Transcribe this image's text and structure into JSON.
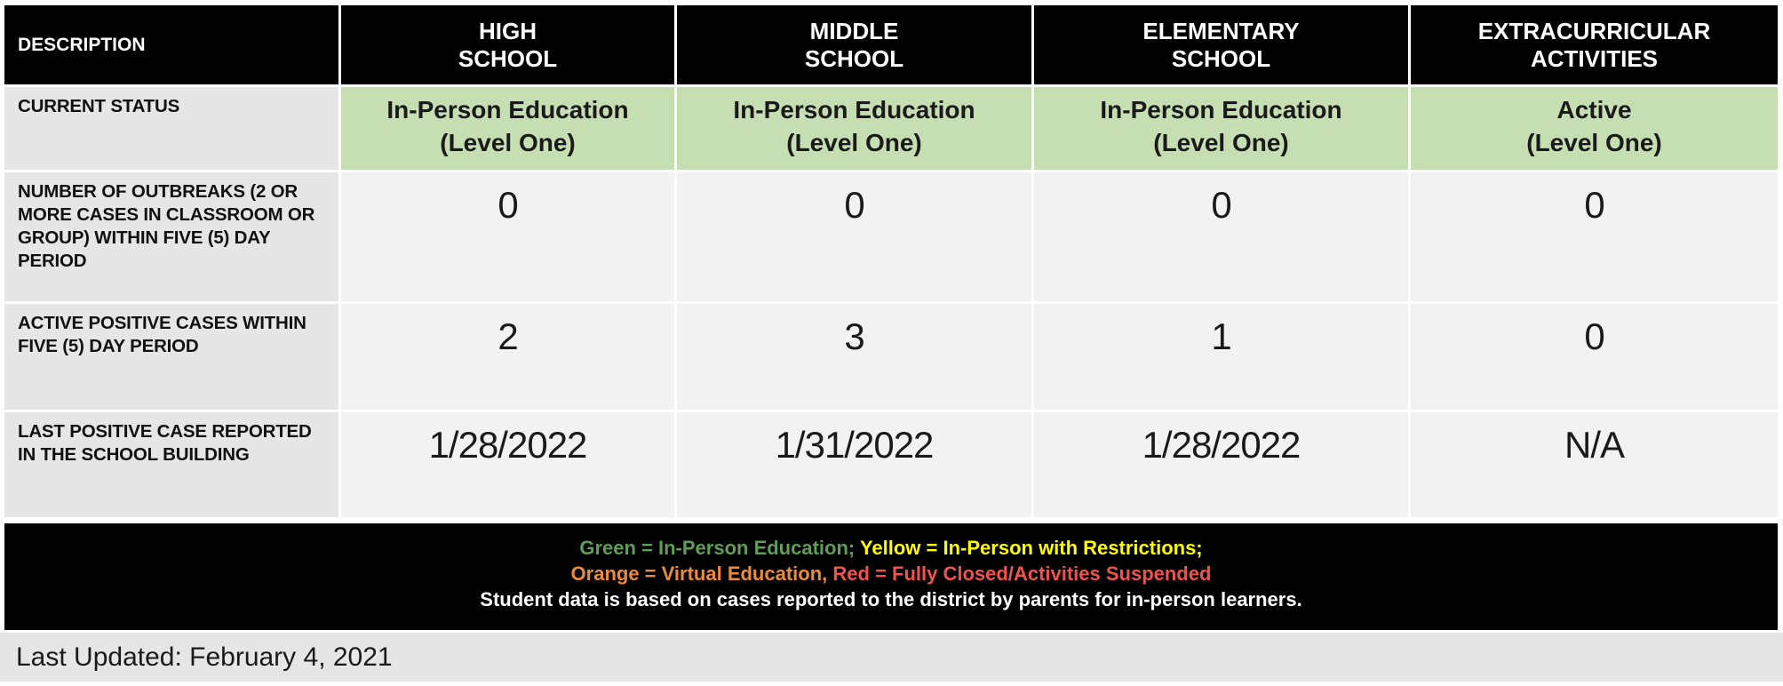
{
  "table": {
    "columns": [
      "DESCRIPTION",
      "HIGH\nSCHOOL",
      "MIDDLE\nSCHOOL",
      "ELEMENTARY\nSCHOOL",
      "EXTRACURRICULAR\nACTIVITIES"
    ],
    "rows": [
      {
        "label": "CURRENT STATUS",
        "values": [
          "In-Person Education\n(Level One)",
          "In-Person Education\n(Level One)",
          "In-Person Education\n(Level One)",
          "Active\n(Level One)"
        ]
      },
      {
        "label": "NUMBER OF OUTBREAKS (2 OR\nMORE CASES IN CLASSROOM OR\nGROUP) WITHIN FIVE (5) DAY\nPERIOD",
        "values": [
          "0",
          "0",
          "0",
          "0"
        ]
      },
      {
        "label": "ACTIVE POSITIVE CASES WITHIN\nFIVE (5) DAY PERIOD",
        "values": [
          "2",
          "3",
          "1",
          "0"
        ]
      },
      {
        "label": "LAST POSITIVE CASE REPORTED\nIN THE SCHOOL BUILDING",
        "values": [
          "1/28/2022",
          "1/31/2022",
          "1/28/2022",
          "N/A"
        ]
      }
    ]
  },
  "legend": {
    "line1": [
      {
        "text": "Green = In-Person Education;",
        "color": "#5e9e56"
      },
      {
        "text": " Yellow = In-Person with Restrictions;",
        "color": "#ffff00"
      }
    ],
    "line2": [
      {
        "text": "Orange = Virtual Education,",
        "color": "#ed8b3d"
      },
      {
        "text": " Red = Fully Closed/Activities Suspended",
        "color": "#f2524e"
      }
    ],
    "line3": {
      "text": "Student data is based on cases reported to the district by parents for in-person learners.",
      "color": "#ffffff"
    }
  },
  "footer": {
    "last_updated": "Last Updated: February 4, 2021"
  },
  "colors": {
    "header_bg": "#000000",
    "status_green_bg": "#c5dfb3",
    "label_bg": "#e7e6e6",
    "value_bg": "#f2f2f2",
    "legend_green": "#5e9e56",
    "legend_yellow": "#ffff00",
    "legend_orange": "#ed8b3d",
    "legend_red": "#f2524e"
  }
}
